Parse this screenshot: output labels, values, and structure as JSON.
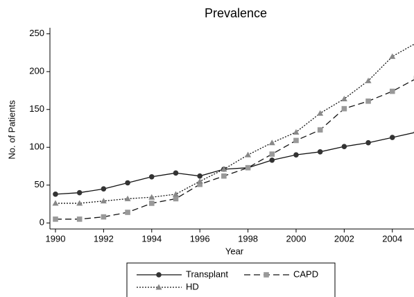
{
  "chart_data": {
    "type": "line",
    "title": "Prevalence",
    "x_label": "Year",
    "y_label": "No. of Patients",
    "x": [
      1990,
      1991,
      1992,
      1993,
      1994,
      1995,
      1996,
      1997,
      1998,
      1999,
      2000,
      2001,
      2002,
      2003,
      2004,
      2005
    ],
    "series": [
      {
        "name": "Transplant",
        "color": "#333333",
        "marker": "circle",
        "dash": "solid",
        "values": [
          38,
          40,
          45,
          53,
          61,
          66,
          62,
          71,
          73,
          83,
          90,
          94,
          101,
          106,
          113,
          120
        ]
      },
      {
        "name": "CAPD",
        "color": "#999999",
        "marker": "square",
        "dash": "dashed",
        "values": [
          5,
          5,
          8,
          14,
          26,
          32,
          51,
          62,
          73,
          91,
          109,
          123,
          151,
          161,
          174,
          191
        ]
      },
      {
        "name": "HD",
        "color": "#888888",
        "marker": "triangle",
        "dash": "dotted",
        "values": [
          26,
          26,
          29,
          32,
          34,
          38,
          55,
          71,
          90,
          106,
          120,
          145,
          164,
          188,
          220,
          238
        ]
      }
    ],
    "xlim": [
      1989.77,
      2004.9
    ],
    "ylim": [
      -8,
      258
    ],
    "xticks": [
      1990,
      1992,
      1994,
      1996,
      1998,
      2000,
      2002,
      2004
    ],
    "yticks": [
      0,
      50,
      100,
      150,
      200,
      250
    ]
  }
}
